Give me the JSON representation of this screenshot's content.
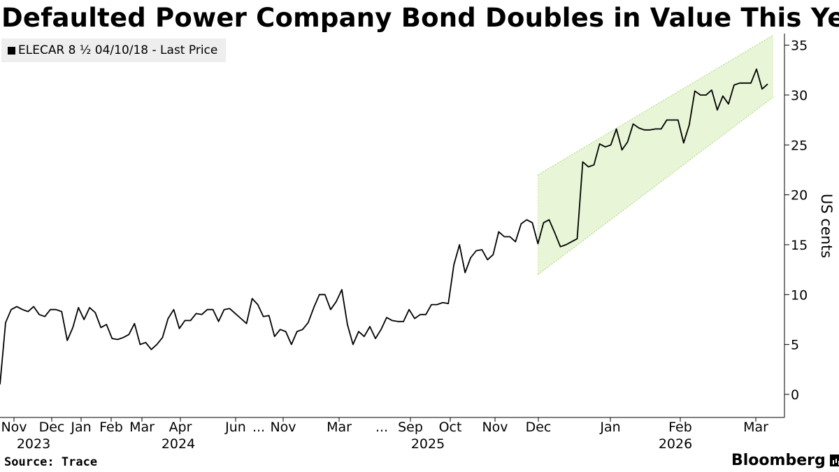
{
  "title": "Defaulted Power Company Bond Doubles in Value This Year",
  "legend": {
    "label": "ELECAR 8 ½ 04/10/18 - Last Price"
  },
  "footer": {
    "source": "Source: Trace",
    "brand": "Bloomberg"
  },
  "chart_data": {
    "type": "line",
    "title": "Defaulted Power Company Bond Doubles in Value This Year",
    "ylabel": "US cents",
    "ylim": [
      -2,
      35.5
    ],
    "yticks": [
      0,
      5,
      10,
      15,
      20,
      25,
      30,
      35
    ],
    "y_axis_position": "right",
    "grid": false,
    "legend_position": "top-left",
    "x_axis_breaks": [
      "between Jun 2024 and Nov 2024",
      "between Mar 2025 and Sep 2025"
    ],
    "x_tick_labels": [
      {
        "label": "Nov",
        "year": "2023"
      },
      {
        "label": "Dec",
        "year": ""
      },
      {
        "label": "Jan",
        "year": ""
      },
      {
        "label": "Feb",
        "year": ""
      },
      {
        "label": "Mar",
        "year": ""
      },
      {
        "label": "Apr",
        "year": "2024"
      },
      {
        "label": "Jun",
        "year": ""
      },
      {
        "label": "...",
        "year": ""
      },
      {
        "label": "Nov",
        "year": ""
      },
      {
        "label": "Mar",
        "year": ""
      },
      {
        "label": "...",
        "year": ""
      },
      {
        "label": "Sep",
        "year": "2025"
      },
      {
        "label": "Oct",
        "year": ""
      },
      {
        "label": "Nov",
        "year": ""
      },
      {
        "label": "Dec",
        "year": ""
      },
      {
        "label": "Jan",
        "year": ""
      },
      {
        "label": "Feb",
        "year": "2026"
      },
      {
        "label": "Mar",
        "year": ""
      }
    ],
    "series": [
      {
        "name": "ELECAR 8 ½ 04/10/18 - Last Price",
        "color": "#000000",
        "values": [
          1.0,
          7.2,
          8.5,
          8.8,
          8.5,
          8.3,
          8.8,
          8.0,
          7.8,
          8.5,
          8.5,
          8.3,
          5.4,
          6.7,
          8.7,
          7.5,
          8.7,
          8.2,
          6.7,
          7.0,
          5.6,
          5.5,
          5.7,
          6.0,
          7.1,
          5.0,
          5.2,
          4.5,
          5.0,
          5.7,
          7.6,
          8.5,
          6.6,
          7.4,
          7.4,
          8.1,
          8.0,
          8.5,
          8.5,
          7.3,
          8.5,
          8.6,
          8.1,
          7.6,
          7.1,
          9.6,
          9.0,
          7.8,
          7.9,
          5.8,
          6.5,
          6.3,
          5.0,
          6.3,
          6.5,
          7.2,
          8.7,
          10.0,
          10.0,
          8.5,
          9.3,
          10.5,
          7.0,
          5.0,
          6.3,
          5.8,
          6.8,
          5.6,
          6.5,
          7.7,
          7.4,
          7.3,
          7.3,
          8.5,
          7.6,
          8.0,
          8.0,
          9.0,
          9.0,
          9.2,
          9.1,
          13.0,
          15.0,
          12.2,
          13.7,
          14.4,
          14.5,
          13.5,
          14.0,
          16.3,
          15.8,
          15.8,
          15.3,
          17.1,
          17.5,
          17.2,
          15.1,
          17.2,
          17.5,
          16.2,
          14.8,
          15.0,
          15.3,
          15.6,
          23.3,
          22.8,
          23.0,
          25.1,
          24.8,
          25.0,
          26.6,
          24.5,
          25.3,
          27.1,
          26.7,
          26.5,
          26.5,
          26.6,
          26.6,
          27.5,
          27.5,
          27.5,
          25.2,
          27.0,
          30.4,
          30.0,
          30.0,
          30.5,
          28.5,
          29.9,
          29.1,
          31.0,
          31.2,
          31.2,
          31.2,
          32.6,
          30.6,
          31.1
        ]
      }
    ],
    "trend_channel": {
      "color": "#e8f5d6",
      "start_index": 96,
      "end_index": 138,
      "upper_start": 22.0,
      "upper_end": 36.0,
      "lower_start": 12.0,
      "lower_end": 29.8
    }
  }
}
